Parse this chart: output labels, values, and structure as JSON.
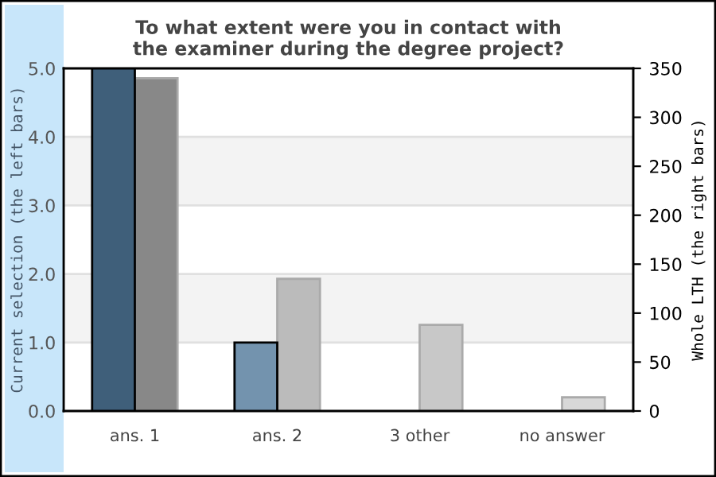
{
  "chart_data": {
    "type": "bar",
    "title": "To what extent were you in contact with\nthe examiner during the degree project?",
    "ylabel": "Current selection (the left bars)",
    "y2label": "Whole LTH (the right bars)",
    "categories": [
      "ans. 1",
      "ans. 2",
      "3 other",
      "no answer"
    ],
    "series": [
      {
        "colors": [
          "#3f5f7a",
          "#7393ae",
          "#7393ae",
          "#7393ae"
        ],
        "values": [
          5,
          1,
          0,
          0
        ]
      },
      {
        "axis": "y2",
        "colors": [
          "#888888",
          "#bbbbbb",
          "#c8c8c8",
          "#d8d8d8"
        ],
        "values": [
          340,
          135,
          88,
          14
        ]
      }
    ],
    "ylim": [
      0,
      5
    ],
    "yticks": [
      {
        "value": 0,
        "label": "0.0"
      },
      {
        "value": 1,
        "label": "1.0"
      },
      {
        "value": 2,
        "label": "2.0"
      },
      {
        "value": 3,
        "label": "3.0"
      },
      {
        "value": 4,
        "label": "4.0"
      },
      {
        "value": 5,
        "label": "5.0"
      }
    ],
    "y2lim": [
      0,
      350
    ],
    "y2ticks": [
      0,
      50,
      100,
      150,
      200,
      250,
      300,
      350
    ],
    "bands": [
      {
        "axis": "y",
        "from": 1,
        "to": 2,
        "color": "#f3f3f3"
      },
      {
        "axis": "y",
        "from": 3,
        "to": 4,
        "color": "#f3f3f3"
      }
    ],
    "grid": "y"
  }
}
